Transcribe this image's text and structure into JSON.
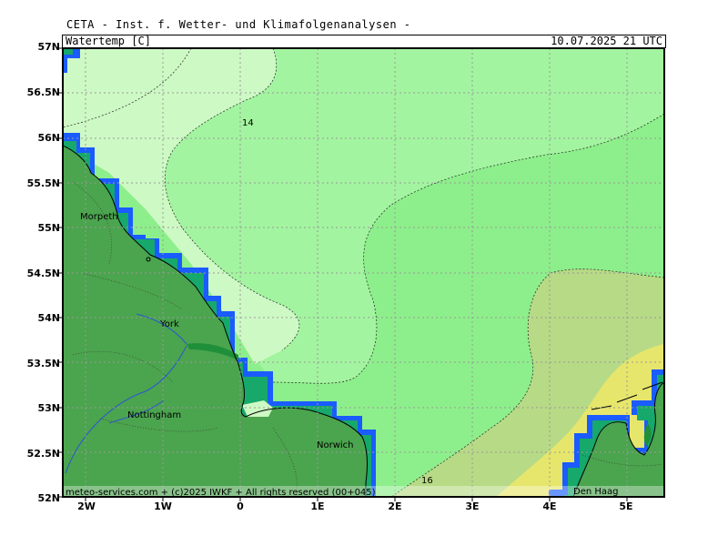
{
  "header": {
    "title": "CETA - Inst. f. Wetter- und Klimafolgenanalysen -"
  },
  "map": {
    "variable": "Watertemp [C]",
    "timestamp": "10.07.2025  21 UTC",
    "lat_labels": [
      "57N",
      "56.5N",
      "56N",
      "55.5N",
      "55N",
      "54.5N",
      "54N",
      "53.5N",
      "53N",
      "52.5N",
      "52N"
    ],
    "lon_labels": [
      "2W",
      "1W",
      "0",
      "1E",
      "2E",
      "3E",
      "4E",
      "5E"
    ],
    "contour_labels": [
      "14",
      "16"
    ],
    "cities": [
      "Morpeth",
      "York",
      "Nottingham",
      "Norwich",
      "Den Haag"
    ],
    "footer": "meteo-services.com + (c)2025 IWKF + All rights reserved (00+045)",
    "colors": {
      "sea_cold": "#cdf9c4",
      "sea_mid": "#a3f4a0",
      "sea_warm": "#8def8b",
      "sea_olive": "#b7da86",
      "sea_yellow": "#e7e66c",
      "land": "#4ba44e",
      "coast_blue": "#1a5cff"
    }
  }
}
